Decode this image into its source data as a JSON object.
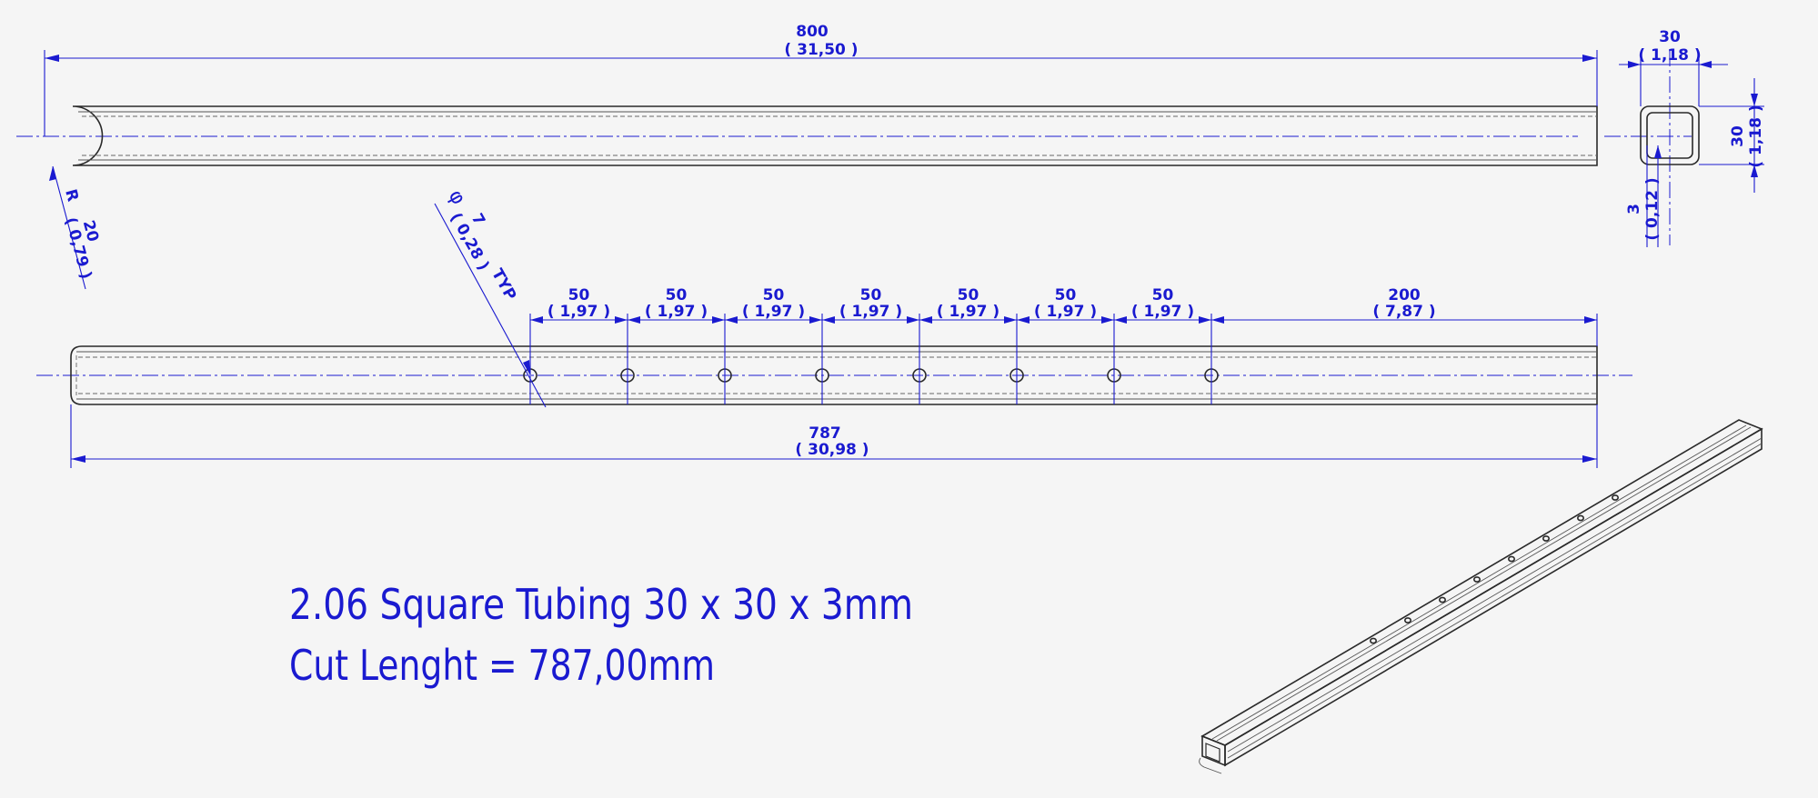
{
  "colors": {
    "background": "#f5f5f5",
    "dimension": "#1a1ad0",
    "object": "#2a2a2a"
  },
  "top_view": {
    "overall": {
      "value": "800",
      "inch": "( 31,50 )"
    },
    "radius": {
      "prefix": "R",
      "value": "20",
      "inch": "( 0,79 )"
    }
  },
  "section_view": {
    "width": {
      "value": "30",
      "inch": "( 1,18 )"
    },
    "height": {
      "value": "30",
      "inch": "( 1,18 )"
    },
    "wall": {
      "value": "3",
      "inch": "( 0,12 )"
    }
  },
  "front_view": {
    "hole": {
      "symbol": "φ",
      "value": "7",
      "inch": "( 0,28 )",
      "note": "TYP"
    },
    "spacings": [
      {
        "value": "50",
        "inch": "( 1,97 )"
      },
      {
        "value": "50",
        "inch": "( 1,97 )"
      },
      {
        "value": "50",
        "inch": "( 1,97 )"
      },
      {
        "value": "50",
        "inch": "( 1,97 )"
      },
      {
        "value": "50",
        "inch": "( 1,97 )"
      },
      {
        "value": "50",
        "inch": "( 1,97 )"
      },
      {
        "value": "50",
        "inch": "( 1,97 )"
      },
      {
        "value": "200",
        "inch": "( 7,87 )"
      }
    ],
    "cut_length": {
      "value": "787",
      "inch": "( 30,98 )"
    }
  },
  "title": {
    "line1": "2.06 Square Tubing 30 x 30 x 3mm",
    "line2": "Cut Lenght = 787,00mm"
  }
}
